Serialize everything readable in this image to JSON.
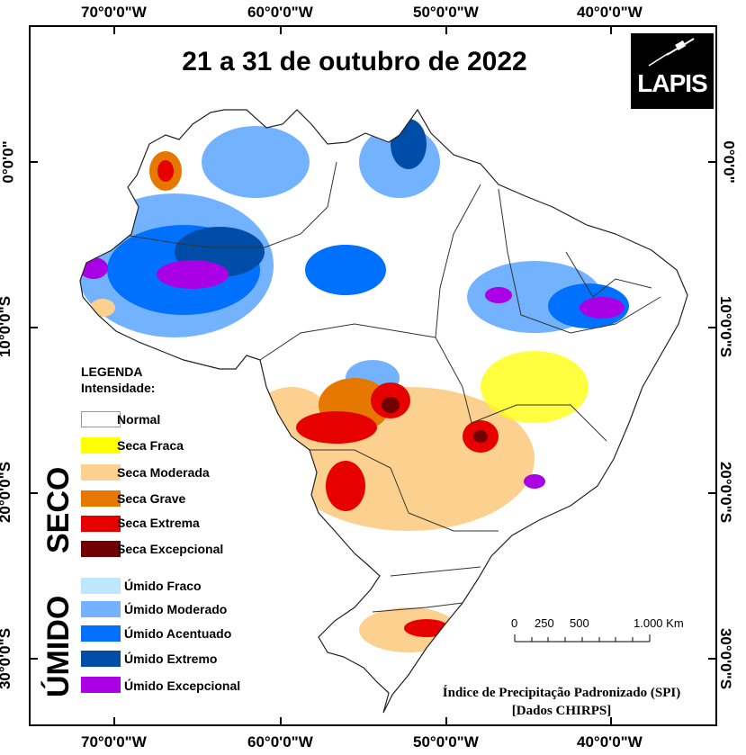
{
  "title": "21 a 31 de outubro de 2022",
  "logo": {
    "text": "LAPIS",
    "icon": "satellite-icon"
  },
  "longitude_labels": [
    "70°0'0\"W",
    "60°0'0\"W",
    "50°0'0\"W",
    "40°0'0\"W"
  ],
  "latitude_labels": [
    "0°0'0\"",
    "10°0'0\"S",
    "20°0'0\"S",
    "30°0'0\"S"
  ],
  "legend": {
    "heading": "LEGENDA",
    "subheading": "Intensidade:",
    "dry_group": "SECO",
    "wet_group": "ÚMIDO",
    "items": [
      {
        "label": "Normal",
        "color": "#ffffff"
      },
      {
        "label": "Seca Fraca",
        "color": "#ffff00"
      },
      {
        "label": "Seca Moderada",
        "color": "#fcd18f"
      },
      {
        "label": "Seca Grave",
        "color": "#e67800"
      },
      {
        "label": "Seca Extrema",
        "color": "#e60000"
      },
      {
        "label": "Seca Excepcional",
        "color": "#730000"
      },
      {
        "label": "Úmido Fraco",
        "color": "#bee8ff"
      },
      {
        "label": "Úmido Moderado",
        "color": "#73b2ff"
      },
      {
        "label": "Úmido Acentuado",
        "color": "#0070ff"
      },
      {
        "label": "Úmido Extremo",
        "color": "#004da8"
      },
      {
        "label": "Úmido Excepcional",
        "color": "#a900e6"
      }
    ]
  },
  "scale_bar": {
    "labels": [
      "0",
      "250",
      "500",
      "1.000 Km"
    ]
  },
  "caption": {
    "line1": "Índice de Precipitação Padronizado (SPI)",
    "line2": "[Dados CHIRPS]"
  }
}
